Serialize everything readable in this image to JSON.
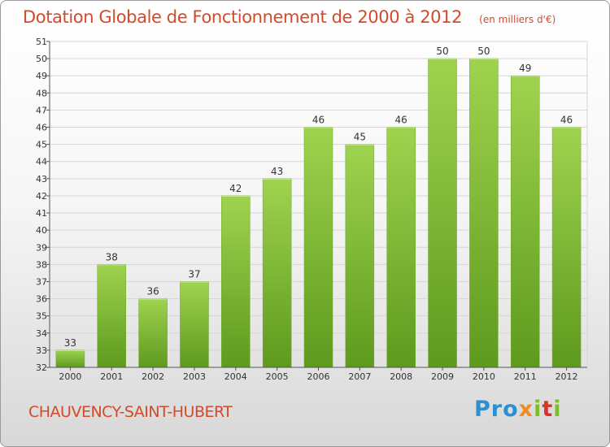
{
  "title": "Dotation Globale de Fonctionnement de 2000 à 2012",
  "unit": "(en milliers d'€)",
  "commune": "CHAUVENCY-SAINT-HUBERT",
  "logo": {
    "p1": "Pro",
    "p2": "x",
    "p3": "i",
    "p4": "t",
    "p5": "i"
  },
  "colors": {
    "title": "#d34a2b",
    "bar_top": "#9fd34f",
    "bar_bottom": "#5e9a1e",
    "grid": "#d6d6d6",
    "axis_text": "#333333"
  },
  "chart_data": {
    "type": "bar",
    "title": "Dotation Globale de Fonctionnement de 2000 à 2012",
    "unit": "(en milliers d'€)",
    "categories": [
      "2000",
      "2001",
      "2002",
      "2003",
      "2004",
      "2005",
      "2006",
      "2007",
      "2008",
      "2009",
      "2010",
      "2011",
      "2012"
    ],
    "values": [
      33,
      38,
      36,
      37,
      42,
      43,
      46,
      45,
      46,
      50,
      50,
      49,
      46
    ],
    "ylim": [
      32,
      51
    ],
    "yticks": [
      32,
      33,
      34,
      35,
      36,
      37,
      38,
      39,
      40,
      41,
      42,
      43,
      44,
      45,
      46,
      47,
      48,
      49,
      50,
      51
    ],
    "grid": true,
    "data_labels": true
  }
}
